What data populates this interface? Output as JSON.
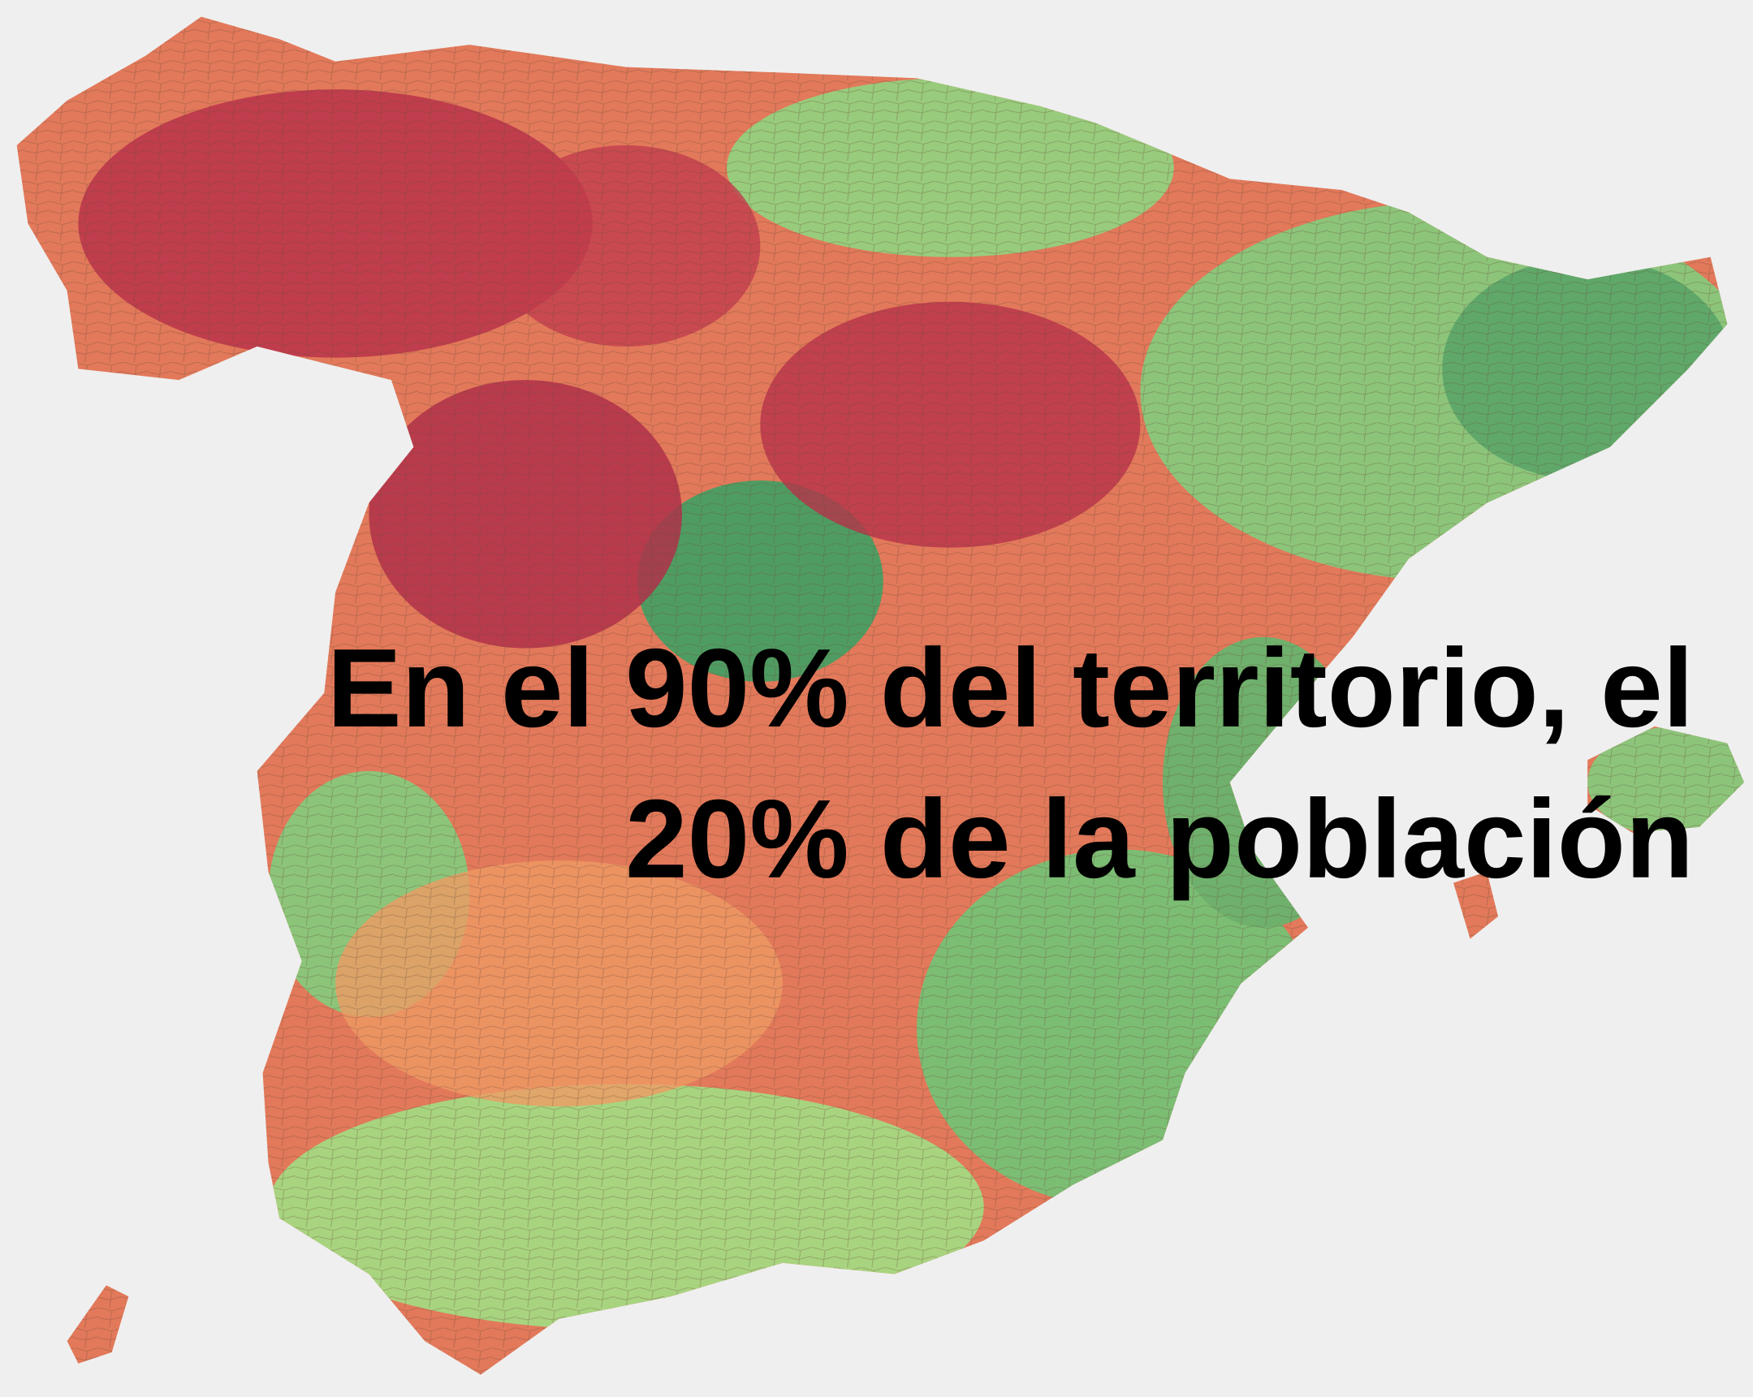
{
  "caption": {
    "lines": [
      "En el 90% del territorio, el",
      "20% de la población"
    ]
  }
}
